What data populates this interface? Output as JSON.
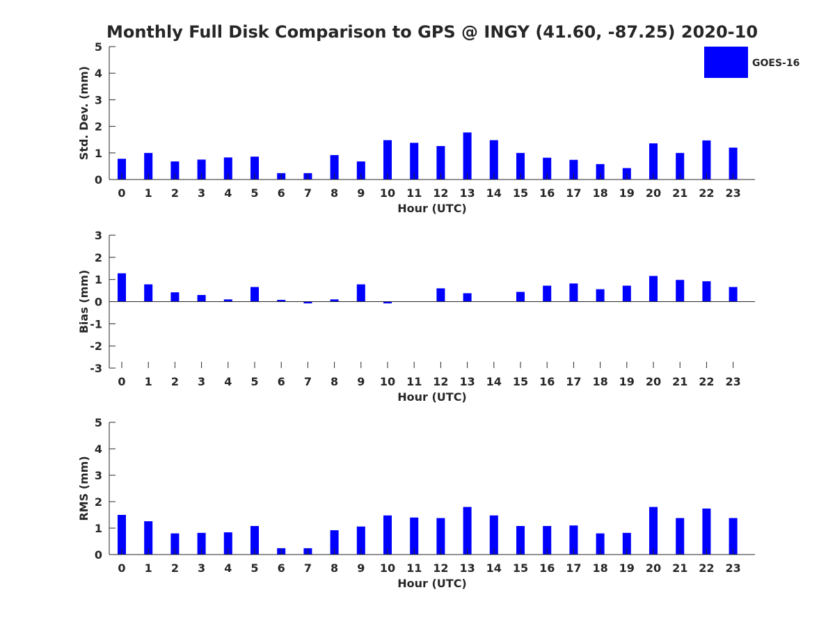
{
  "title": "Monthly Full Disk Comparison to GPS @ INGY (41.60, -87.25) 2020-10",
  "colors": {
    "bar": "#0000ff",
    "axis": "#262626",
    "background": "#ffffff"
  },
  "legend": {
    "label": "GOES-16",
    "placement": "top-right"
  },
  "chart_data": [
    {
      "type": "bar",
      "ylabel": "Std. Dev. (mm)",
      "xlabel": "Hour (UTC)",
      "ylim": [
        0,
        5
      ],
      "yticks": [
        "0",
        "1",
        "2",
        "3",
        "4",
        "5"
      ],
      "categories": [
        "0",
        "1",
        "2",
        "3",
        "4",
        "5",
        "6",
        "7",
        "8",
        "9",
        "10",
        "11",
        "12",
        "13",
        "14",
        "15",
        "16",
        "17",
        "18",
        "19",
        "20",
        "21",
        "22",
        "23"
      ],
      "series": [
        {
          "name": "GOES-16",
          "values": [
            0.78,
            1.0,
            0.68,
            0.75,
            0.83,
            0.86,
            0.24,
            0.24,
            0.92,
            0.68,
            1.48,
            1.38,
            1.26,
            1.77,
            1.48,
            1.0,
            0.82,
            0.74,
            0.58,
            0.43,
            1.36,
            1.0,
            1.47,
            1.2
          ]
        }
      ]
    },
    {
      "type": "bar",
      "ylabel": "Bias (mm)",
      "xlabel": "Hour (UTC)",
      "ylim": [
        -3,
        3
      ],
      "yticks": [
        "-3",
        "-2",
        "-1",
        "0",
        "1",
        "2",
        "3"
      ],
      "categories": [
        "0",
        "1",
        "2",
        "3",
        "4",
        "5",
        "6",
        "7",
        "8",
        "9",
        "10",
        "11",
        "12",
        "13",
        "14",
        "15",
        "16",
        "17",
        "18",
        "19",
        "20",
        "21",
        "22",
        "23"
      ],
      "series": [
        {
          "name": "GOES-16",
          "values": [
            1.28,
            0.78,
            0.42,
            0.3,
            0.1,
            0.66,
            0.08,
            -0.08,
            0.1,
            0.78,
            -0.08,
            0.0,
            0.6,
            0.38,
            0.0,
            0.44,
            0.72,
            0.82,
            0.56,
            0.72,
            1.16,
            0.98,
            0.92,
            0.66
          ]
        }
      ]
    },
    {
      "type": "bar",
      "ylabel": "RMS (mm)",
      "xlabel": "Hour (UTC)",
      "ylim": [
        0,
        5
      ],
      "yticks": [
        "0",
        "1",
        "2",
        "3",
        "4",
        "5"
      ],
      "categories": [
        "0",
        "1",
        "2",
        "3",
        "4",
        "5",
        "6",
        "7",
        "8",
        "9",
        "10",
        "11",
        "12",
        "13",
        "14",
        "15",
        "16",
        "17",
        "18",
        "19",
        "20",
        "21",
        "22",
        "23"
      ],
      "series": [
        {
          "name": "GOES-16",
          "values": [
            1.5,
            1.26,
            0.8,
            0.82,
            0.84,
            1.08,
            0.24,
            0.24,
            0.92,
            1.06,
            1.48,
            1.4,
            1.38,
            1.8,
            1.48,
            1.08,
            1.08,
            1.1,
            0.8,
            0.82,
            1.8,
            1.38,
            1.74,
            1.38
          ]
        }
      ]
    }
  ]
}
